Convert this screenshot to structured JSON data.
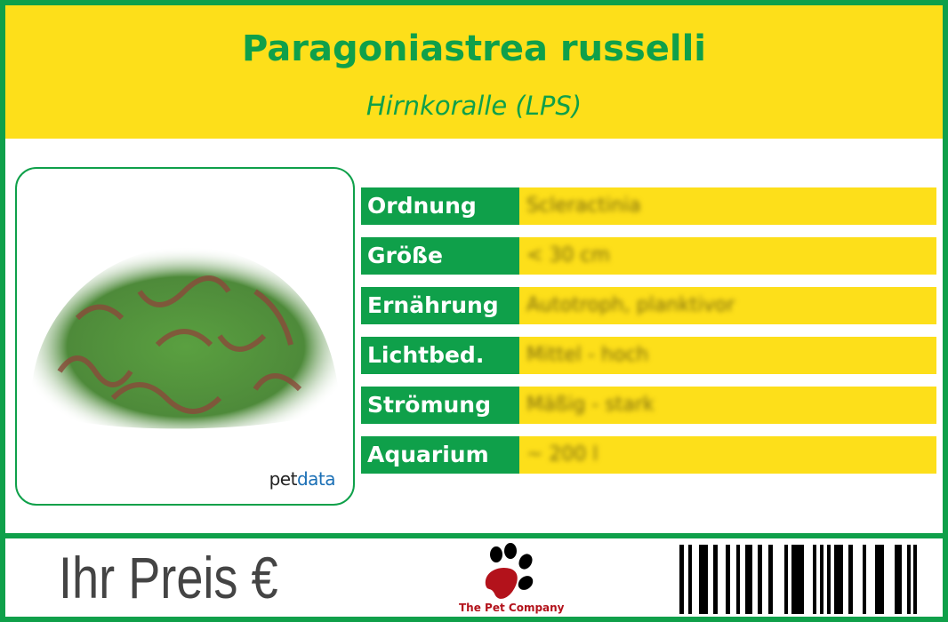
{
  "header": {
    "title": "Paragoniastrea russelli",
    "subtitle": "Hirnkoralle (LPS)"
  },
  "photo": {
    "logo_prefix": "pet",
    "logo_suffix": "data"
  },
  "rows": [
    {
      "label": "Ordnung",
      "value": "Scleractinia"
    },
    {
      "label": "Größe",
      "value": "< 30 cm"
    },
    {
      "label": "Ernährung",
      "value": "Autotroph, planktivor"
    },
    {
      "label": "Lichtbed.",
      "value": "Mittel - hoch"
    },
    {
      "label": "Strömung",
      "value": "Mäßig - stark"
    },
    {
      "label": "Aquarium",
      "value": "~ 200 l"
    }
  ],
  "footer": {
    "price_label": "Ihr Preis €",
    "company": "The Pet Company"
  },
  "colors": {
    "green": "#0fa04a",
    "yellow": "#fddf1a",
    "paw_red": "#b3121b"
  }
}
